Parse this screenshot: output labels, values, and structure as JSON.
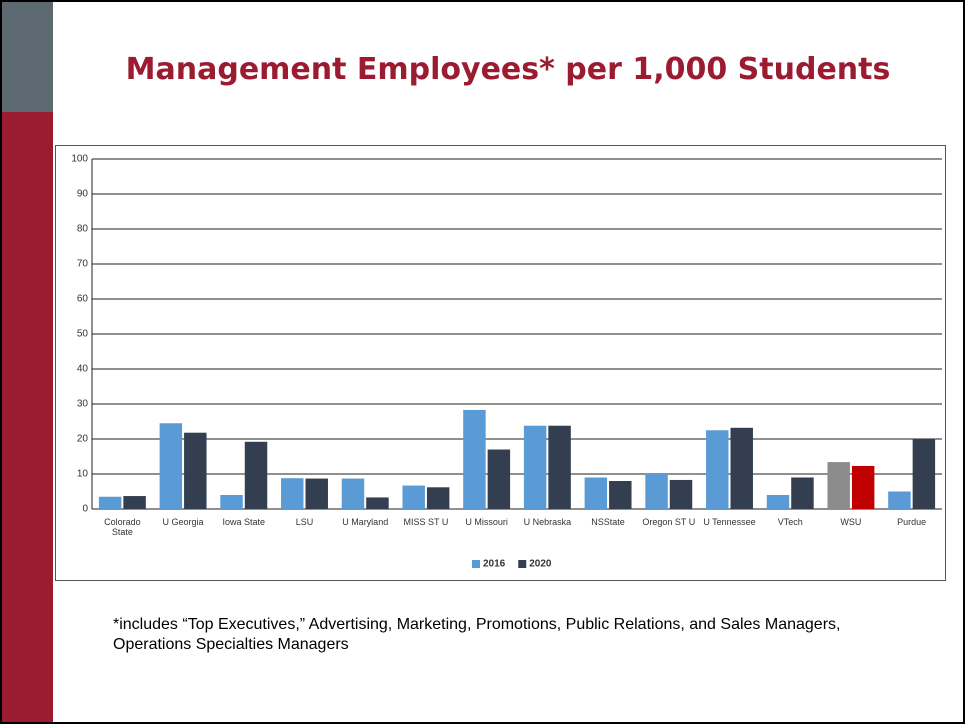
{
  "title": "Management Employees* per 1,000 Students",
  "footnote": "*includes “Top Executives,” Advertising, Marketing, Promotions, Public Relations, and Sales Managers, Operations Specialties Managers",
  "chart_data": {
    "type": "bar",
    "categories": [
      "Colorado State",
      "U Georgia",
      "Iowa State",
      "LSU",
      "U Maryland",
      "MISS ST U",
      "U Missouri",
      "U Nebraska",
      "NSState",
      "Oregon ST U",
      "U Tennessee",
      "VTech",
      "WSU",
      "Purdue"
    ],
    "series": [
      {
        "name": "2016",
        "color": "#5b9bd5",
        "colors": [
          "#5b9bd5",
          "#5b9bd5",
          "#5b9bd5",
          "#5b9bd5",
          "#5b9bd5",
          "#5b9bd5",
          "#5b9bd5",
          "#5b9bd5",
          "#5b9bd5",
          "#5b9bd5",
          "#5b9bd5",
          "#5b9bd5",
          "#8c8c8c",
          "#5b9bd5"
        ],
        "values": [
          3.5,
          24.5,
          4,
          8.8,
          8.7,
          6.7,
          28.3,
          23.8,
          9,
          10,
          22.5,
          4,
          13.4,
          5
        ]
      },
      {
        "name": "2020",
        "color": "#333f50",
        "colors": [
          "#333f50",
          "#333f50",
          "#333f50",
          "#333f50",
          "#333f50",
          "#333f50",
          "#333f50",
          "#333f50",
          "#333f50",
          "#333f50",
          "#333f50",
          "#333f50",
          "#c00000",
          "#333f50"
        ],
        "values": [
          3.7,
          21.8,
          19.2,
          8.7,
          3.3,
          6.2,
          17,
          23.8,
          8,
          8.3,
          23.2,
          9,
          12.3,
          20
        ]
      }
    ],
    "ylim": [
      0,
      100
    ],
    "yticks": [
      0,
      10,
      20,
      30,
      40,
      50,
      60,
      70,
      80,
      90,
      100
    ],
    "grid": true,
    "legend": "bottom"
  }
}
